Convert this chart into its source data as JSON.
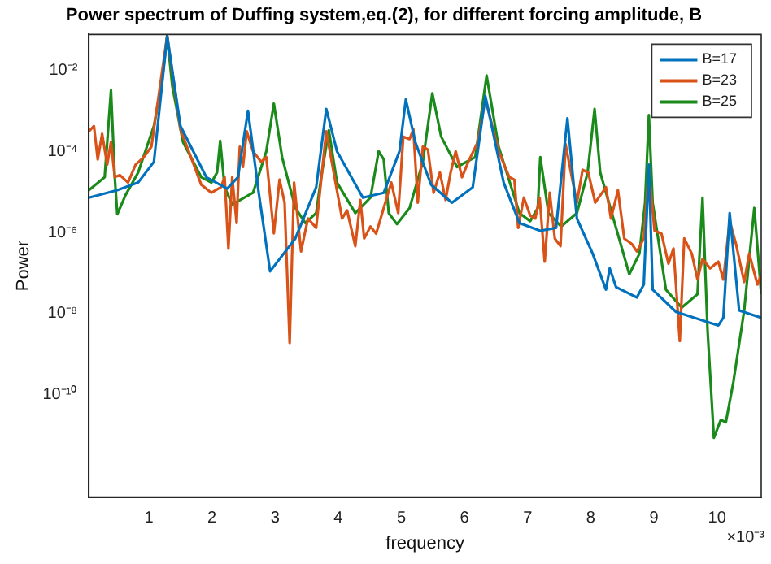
{
  "chart_data": {
    "type": "line",
    "title": "Power spectrum of Duffing system,eq.(2), for different forcing amplitude, B",
    "xlabel": "frequency",
    "ylabel": "Power",
    "annotations": [
      "×10⁻³"
    ],
    "log": "y",
    "grid": false,
    "legend": "top right",
    "marker": "none",
    "line_style": "solid",
    "xlim": [
      0.05,
      10.7
    ],
    "xticks": [
      1,
      2,
      3,
      4,
      5,
      6,
      7,
      8,
      9,
      10
    ],
    "ylim": [
      3e-13,
      0.076
    ],
    "yticks": [
      {
        "value": 1e-10,
        "label": "10⁻¹⁰"
      },
      {
        "value": 1e-08,
        "label": "10⁻⁸"
      },
      {
        "value": 1e-06,
        "label": "10⁻⁶"
      },
      {
        "value": 0.0001,
        "label": "10⁻⁴"
      },
      {
        "value": 0.01,
        "label": "10⁻²"
      }
    ],
    "series": [
      {
        "name": "B=17",
        "color": "#0072bd",
        "x": [
          0.05,
          0.5,
          0.83,
          1.08,
          1.29,
          1.5,
          1.91,
          2.24,
          2.41,
          2.57,
          2.74,
          2.92,
          3.32,
          3.65,
          3.81,
          3.98,
          4.39,
          4.72,
          4.97,
          5.07,
          5.22,
          5.47,
          5.8,
          6.13,
          6.33,
          6.62,
          6.87,
          7.2,
          7.45,
          7.63,
          7.78,
          8.03,
          8.24,
          8.3,
          8.4,
          8.73,
          8.84,
          8.92,
          8.98,
          9.35,
          10.02,
          10.1,
          10.2,
          10.35,
          10.7
        ],
        "values": [
          7.2e-06,
          1.1e-05,
          1.7e-05,
          5.5e-05,
          0.07,
          0.00042,
          2.3e-05,
          1.2e-05,
          2.3e-05,
          0.001,
          9.5e-06,
          1.1e-07,
          7.1e-07,
          1.3e-05,
          0.0011,
          0.0001,
          7.2e-06,
          9.5e-06,
          0.0001,
          0.0019,
          0.00017,
          1.5e-05,
          5.4e-06,
          1.3e-05,
          0.0023,
          1.7e-05,
          1.7e-06,
          1.1e-06,
          1.3e-06,
          0.00065,
          2.2e-06,
          3e-07,
          3.9e-08,
          1.3e-07,
          4.5e-08,
          2.5e-08,
          5.2e-08,
          4.7e-05,
          3.9e-08,
          1.1e-08,
          5.1e-09,
          7.9e-09,
          3e-06,
          1.2e-08,
          7.9e-09
        ]
      },
      {
        "name": "B=23",
        "color": "#d95319",
        "x": [
          0.05,
          0.13,
          0.19,
          0.26,
          0.34,
          0.4,
          0.46,
          0.54,
          0.67,
          0.79,
          0.92,
          1.04,
          1.29,
          1.5,
          1.83,
          1.99,
          2.14,
          2.2,
          2.26,
          2.32,
          2.39,
          2.44,
          2.49,
          2.55,
          2.65,
          2.78,
          2.86,
          2.98,
          3.07,
          3.15,
          3.23,
          3.3,
          3.41,
          3.52,
          3.65,
          3.81,
          4.06,
          4.14,
          4.27,
          4.35,
          4.41,
          4.51,
          4.6,
          4.72,
          4.84,
          4.95,
          5.03,
          5.13,
          5.19,
          5.26,
          5.34,
          5.42,
          5.51,
          5.61,
          5.7,
          5.78,
          5.86,
          5.96,
          6.06,
          6.21,
          6.33,
          6.54,
          6.71,
          6.79,
          6.85,
          6.94,
          7.04,
          7.12,
          7.19,
          7.27,
          7.35,
          7.43,
          7.52,
          7.6,
          7.7,
          7.78,
          7.87,
          7.96,
          8.07,
          8.24,
          8.32,
          8.43,
          8.53,
          8.65,
          8.73,
          8.84,
          8.92,
          9.01,
          9.12,
          9.23,
          9.31,
          9.41,
          9.48,
          9.6,
          9.69,
          9.77,
          9.89,
          10.02,
          10.1,
          10.2,
          10.3,
          10.43,
          10.51,
          10.64,
          10.7
        ],
        "values": [
          0.00031,
          0.00042,
          6.3e-05,
          0.00027,
          4.7e-05,
          0.00017,
          2.3e-05,
          2.6e-05,
          1.7e-05,
          4.7e-05,
          7.2e-05,
          0.00013,
          0.07,
          0.00035,
          1.5e-05,
          9.5e-06,
          1.3e-05,
          2.3e-05,
          4e-07,
          2.3e-05,
          1.7e-06,
          0.00013,
          4.1e-05,
          0.00031,
          0.0001,
          5.5e-05,
          7.2e-05,
          9.5e-07,
          2e-05,
          5.4e-06,
          1.9e-09,
          1.7e-05,
          3.4e-07,
          2.2e-06,
          1.3e-06,
          0.00031,
          2.2e-06,
          3.5e-06,
          4.6e-07,
          6.3e-06,
          7.1e-07,
          1.4e-06,
          9.3e-07,
          4e-06,
          1.7e-05,
          3e-06,
          0.00023,
          0.0002,
          0.00035,
          5.4e-06,
          0.00013,
          0.00011,
          9.5e-06,
          3e-05,
          6.3e-06,
          3e-05,
          0.0001,
          2.3e-05,
          5.5e-05,
          0.00017,
          0.002,
          0.0001,
          2.3e-05,
          2e-05,
          1.3e-06,
          7.2e-06,
          2.6e-06,
          2.2e-06,
          7.2e-06,
          1.9e-07,
          9.5e-06,
          7.1e-07,
          4.6e-07,
          0.00015,
          2.3e-05,
          5.4e-06,
          3.5e-05,
          3e-05,
          5.4e-06,
          1.3e-05,
          2.2e-06,
          1.1e-05,
          7.1e-07,
          5.2e-07,
          3.4e-07,
          7.1e-07,
          3.5e-05,
          1.1e-06,
          9.3e-07,
          1.7e-07,
          4e-07,
          2.1e-09,
          7.1e-07,
          3e-07,
          6.9e-08,
          2.2e-07,
          1.3e-07,
          1.9e-07,
          6.9e-08,
          1.9e-06,
          5.2e-07,
          6e-08,
          3e-07,
          5.2e-08,
          9.3e-08
        ]
      },
      {
        "name": "B=25",
        "color": "#1a8a1a",
        "x": [
          0.05,
          0.3,
          0.4,
          0.46,
          0.5,
          0.63,
          0.83,
          1.08,
          1.21,
          1.29,
          1.37,
          1.54,
          1.83,
          1.99,
          2.08,
          2.13,
          2.2,
          2.32,
          2.65,
          2.86,
          2.98,
          3.11,
          3.32,
          3.48,
          3.65,
          3.73,
          3.85,
          3.98,
          4.27,
          4.51,
          4.64,
          4.72,
          4.8,
          4.93,
          5.13,
          5.34,
          5.49,
          5.63,
          5.88,
          6.17,
          6.35,
          6.54,
          6.87,
          7.04,
          7.16,
          7.2,
          7.33,
          7.53,
          7.78,
          7.95,
          8.06,
          8.15,
          8.4,
          8.61,
          8.77,
          8.86,
          8.92,
          8.98,
          9.19,
          9.44,
          9.69,
          9.77,
          9.85,
          9.95,
          10.06,
          10.14,
          10.26,
          10.43,
          10.59,
          10.7
        ],
        "values": [
          1.1e-05,
          2.3e-05,
          0.0032,
          2.3e-05,
          2.8e-06,
          8.3e-06,
          3e-05,
          0.00042,
          0.0056,
          0.07,
          0.0042,
          0.00017,
          2.3e-05,
          1.7e-05,
          3e-05,
          0.00018,
          1.3e-05,
          4.9e-06,
          9.5e-06,
          0.0001,
          0.0015,
          7.2e-05,
          4e-06,
          1.7e-06,
          3e-06,
          2.3e-05,
          0.00033,
          1.7e-05,
          3e-06,
          7.2e-06,
          0.0001,
          6.3e-05,
          3e-06,
          1.6e-06,
          4e-06,
          5.5e-05,
          0.0027,
          0.00023,
          4.1e-05,
          7.2e-05,
          0.0074,
          0.00013,
          3e-06,
          1.9e-06,
          4e-06,
          7.2e-05,
          3e-06,
          1.4e-06,
          3e-06,
          3e-05,
          0.0011,
          3e-05,
          1.3e-06,
          9.3e-08,
          3e-07,
          5.4e-06,
          0.00078,
          5.4e-06,
          3.9e-08,
          1.4e-08,
          3e-08,
          7.2e-06,
          3.8e-09,
          8.7e-12,
          2.4e-11,
          2.1e-11,
          2.1e-10,
          1.2e-08,
          4e-06,
          3e-08
        ]
      }
    ]
  }
}
